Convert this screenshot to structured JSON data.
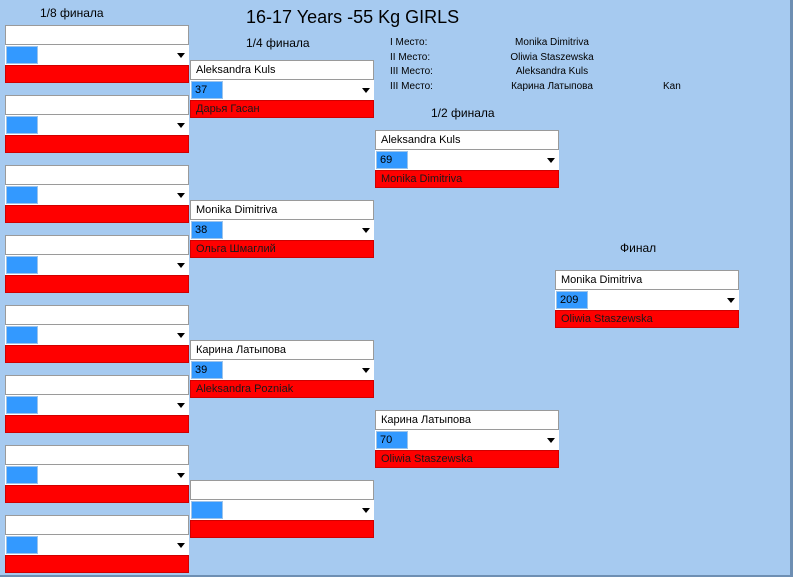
{
  "title": "16-17 Years -55 Kg GIRLS",
  "rounds": {
    "r16": "1/8 финала",
    "qf": "1/4 финала",
    "sf": "1/2 финала",
    "final": "Финал"
  },
  "places": [
    {
      "label": "I Место:",
      "name": "Monika Dimitriva",
      "extra": ""
    },
    {
      "label": "II Место:",
      "name": "Oliwia Staszewska",
      "extra": ""
    },
    {
      "label": "III Место:",
      "name": "Aleksandra Kuls",
      "extra": ""
    },
    {
      "label": "III Место:",
      "name": "Карина Латыпова",
      "extra": "Kan"
    }
  ],
  "r16_matches": [
    {
      "top": "",
      "num": "",
      "bottom": ""
    },
    {
      "top": "",
      "num": "",
      "bottom": ""
    },
    {
      "top": "",
      "num": "",
      "bottom": ""
    },
    {
      "top": "",
      "num": "",
      "bottom": ""
    },
    {
      "top": "",
      "num": "",
      "bottom": ""
    },
    {
      "top": "",
      "num": "",
      "bottom": ""
    },
    {
      "top": "",
      "num": "",
      "bottom": ""
    },
    {
      "top": "",
      "num": "",
      "bottom": ""
    }
  ],
  "qf_matches": [
    {
      "top": "Aleksandra Kuls",
      "num": "37",
      "bottom": "Дарья Гасан"
    },
    {
      "top": "Monika Dimitriva",
      "num": "38",
      "bottom": "Ольга Шмаглий"
    },
    {
      "top": "Карина Латыпова",
      "num": "39",
      "bottom": "Aleksandra Pozniak"
    },
    {
      "top": "",
      "num": "",
      "bottom": ""
    }
  ],
  "sf_matches": [
    {
      "top": "Aleksandra Kuls",
      "num": "69",
      "bottom": "Monika Dimitriva"
    },
    {
      "top": "Карина Латыпова",
      "num": "70",
      "bottom": "Oliwia Staszewska"
    }
  ],
  "final_match": {
    "top": "Monika Dimitriva",
    "num": "209",
    "bottom": "Oliwia Staszewska"
  }
}
